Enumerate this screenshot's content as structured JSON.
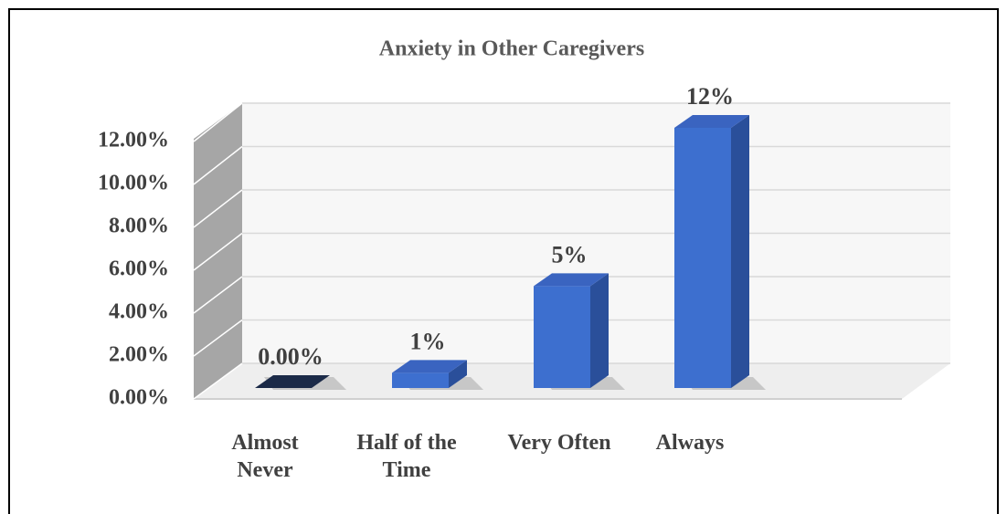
{
  "chart_data": {
    "type": "bar3d",
    "title": "Anxiety in Other Caregivers",
    "categories": [
      "Almost Never",
      "Half of the Time",
      "Very Often",
      "Always"
    ],
    "values": [
      0,
      0.7,
      4.7,
      12
    ],
    "value_labels": [
      "0.00%",
      "1%",
      "5%",
      "12%"
    ],
    "color": "#4472c4",
    "ylim": [
      0,
      12
    ],
    "yticks": [
      {
        "value": 0,
        "label": "0.00%"
      },
      {
        "value": 2,
        "label": "2.00%"
      },
      {
        "value": 4,
        "label": "4.00%"
      },
      {
        "value": 6,
        "label": "6.00%"
      },
      {
        "value": 8,
        "label": "8.00%"
      },
      {
        "value": 10,
        "label": "10.00%"
      },
      {
        "value": 12,
        "label": "12.00%"
      }
    ],
    "grid": true
  }
}
